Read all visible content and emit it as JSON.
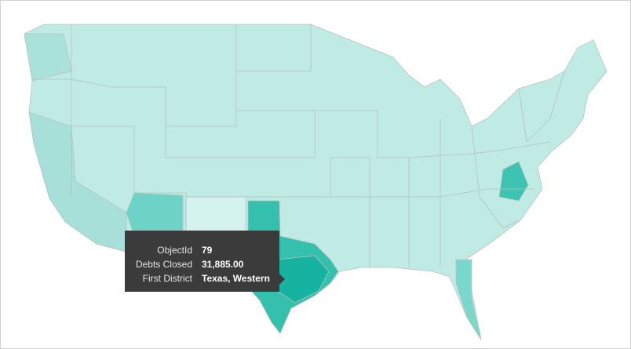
{
  "tooltip": {
    "rows": [
      {
        "label": "ObjectId",
        "value": "79"
      },
      {
        "label": "Debts Closed",
        "value": "31,885.00"
      },
      {
        "label": "First District",
        "value": "Texas, Western"
      }
    ]
  }
}
